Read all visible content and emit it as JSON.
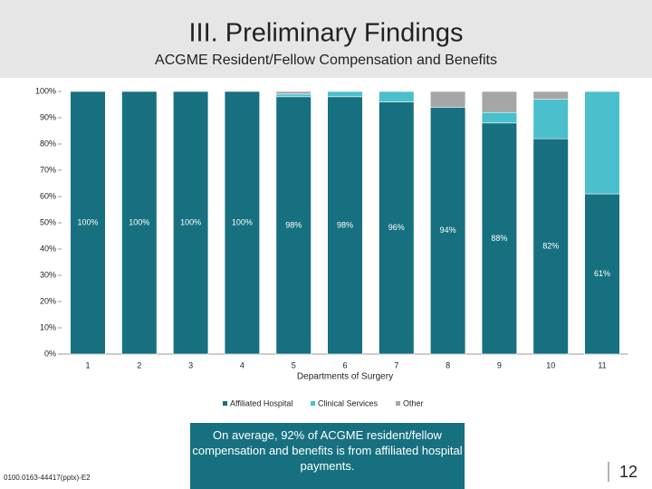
{
  "header": {
    "title": "III. Preliminary Findings"
  },
  "chart_data": {
    "type": "stacked_bar",
    "title": "ACGME Resident/Fellow Compensation and Benefits",
    "x_label": "Departments of Surgery",
    "categories": [
      "1",
      "2",
      "3",
      "4",
      "5",
      "6",
      "7",
      "8",
      "9",
      "10",
      "11"
    ],
    "series": [
      {
        "name": "Affiliated Hospital",
        "color": "#17707f",
        "values": [
          100,
          100,
          100,
          100,
          98,
          98,
          96,
          94,
          88,
          82,
          61
        ],
        "value_labels": [
          "100%",
          "100%",
          "100%",
          "100%",
          "98%",
          "98%",
          "96%",
          "94%",
          "88%",
          "82%",
          "61%"
        ]
      },
      {
        "name": "Clinical Services",
        "color": "#4bbfcc",
        "values": [
          0,
          0,
          0,
          0,
          1,
          2,
          4,
          0,
          4,
          15,
          39
        ]
      },
      {
        "name": "Other",
        "color": "#a6a6a6",
        "values": [
          0,
          0,
          0,
          0,
          1,
          0,
          0,
          6,
          8,
          3,
          0
        ]
      }
    ],
    "ylim": [
      0,
      100
    ],
    "yticks": [
      {
        "value": 0,
        "label": "0%"
      },
      {
        "value": 10,
        "label": "10%"
      },
      {
        "value": 20,
        "label": "20%"
      },
      {
        "value": 30,
        "label": "30%"
      },
      {
        "value": 40,
        "label": "40%"
      },
      {
        "value": 50,
        "label": "50%"
      },
      {
        "value": 60,
        "label": "60%"
      },
      {
        "value": 70,
        "label": "70%"
      },
      {
        "value": 80,
        "label": "80%"
      },
      {
        "value": 90,
        "label": "90%"
      },
      {
        "value": 100,
        "label": "100%"
      }
    ],
    "legend": "bottom"
  },
  "callout": "On average, 92% of ACGME resident/fellow compensation and benefits is from affiliated hospital payments.",
  "footer": {
    "code": "0100.0163-44417(pptx)-E2",
    "page": "12"
  }
}
